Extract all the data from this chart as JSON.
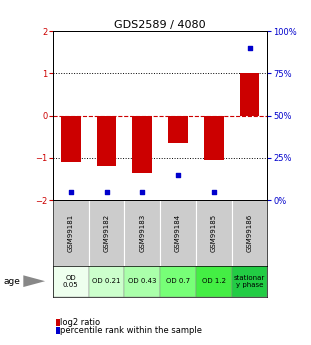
{
  "title": "GDS2589 / 4080",
  "samples": [
    "GSM99181",
    "GSM99182",
    "GSM99183",
    "GSM99184",
    "GSM99185",
    "GSM99186"
  ],
  "log2_ratio": [
    -1.1,
    -1.2,
    -1.35,
    -0.65,
    -1.05,
    1.0
  ],
  "percentile_rank": [
    5,
    5,
    5,
    15,
    5,
    90
  ],
  "bar_color": "#cc0000",
  "dot_color": "#0000cc",
  "ylim_left": [
    -2,
    2
  ],
  "ylim_right": [
    0,
    100
  ],
  "yticks_left": [
    -2,
    -1,
    0,
    1,
    2
  ],
  "yticks_right": [
    0,
    25,
    50,
    75,
    100
  ],
  "ytick_labels_right": [
    "0%",
    "25%",
    "50%",
    "75%",
    "100%"
  ],
  "hline_color_zero": "#cc0000",
  "dotline_color": "#000000",
  "od_labels": [
    "OD\n0.05",
    "OD 0.21",
    "OD 0.43",
    "OD 0.7",
    "OD 1.2",
    "stationar\ny phase"
  ],
  "od_colors": [
    "#eeffee",
    "#ccffcc",
    "#aaffaa",
    "#77ff77",
    "#44ee44",
    "#22cc44"
  ],
  "sample_bg_color": "#cccccc",
  "age_label": "age",
  "bar_width": 0.55,
  "title_fontsize": 8,
  "tick_fontsize": 6,
  "sample_fontsize": 5,
  "od_fontsize": 5
}
